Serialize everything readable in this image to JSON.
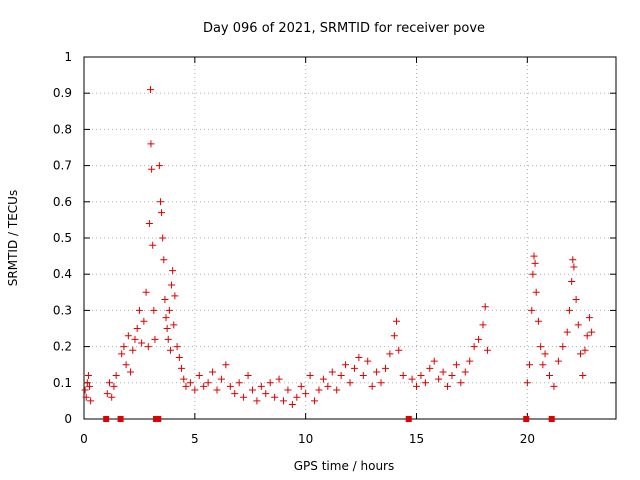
{
  "chart_data": {
    "type": "scatter",
    "title": "Day 096 of 2021, SRMTID for receiver pove",
    "xlabel": "GPS time / hours",
    "ylabel": "SRMTID / TECUs",
    "xlim": [
      0,
      24
    ],
    "ylim": [
      0,
      1
    ],
    "grid": true,
    "marker": "plus",
    "color": "#e00000",
    "x_ticks": [
      "0",
      "5",
      "10",
      "15",
      "20"
    ],
    "x_tick_values": [
      0,
      5,
      10,
      15,
      20
    ],
    "y_ticks": [
      "0",
      "0.1",
      "0.2",
      "0.3",
      "0.4",
      "0.5",
      "0.6",
      "0.7",
      "0.8",
      "0.9",
      "1"
    ],
    "y_tick_values": [
      0,
      0.1,
      0.2,
      0.3,
      0.4,
      0.5,
      0.6,
      0.7,
      0.8,
      0.9,
      1.0
    ],
    "data_gaps_hours": [
      1.0,
      1.65,
      3.25,
      3.35,
      14.65,
      19.95,
      21.1
    ],
    "series": [
      {
        "name": "SRMTID",
        "points": [
          [
            0.05,
            0.08
          ],
          [
            0.1,
            0.06
          ],
          [
            0.15,
            0.1
          ],
          [
            0.2,
            0.12
          ],
          [
            0.25,
            0.09
          ],
          [
            0.3,
            0.05
          ],
          [
            1.05,
            0.07
          ],
          [
            1.15,
            0.1
          ],
          [
            1.25,
            0.06
          ],
          [
            1.35,
            0.09
          ],
          [
            1.45,
            0.12
          ],
          [
            1.7,
            0.18
          ],
          [
            1.8,
            0.2
          ],
          [
            1.9,
            0.15
          ],
          [
            2.0,
            0.23
          ],
          [
            2.1,
            0.13
          ],
          [
            2.2,
            0.19
          ],
          [
            2.3,
            0.22
          ],
          [
            2.4,
            0.25
          ],
          [
            2.5,
            0.3
          ],
          [
            2.6,
            0.21
          ],
          [
            2.7,
            0.27
          ],
          [
            2.8,
            0.35
          ],
          [
            2.9,
            0.2
          ],
          [
            2.95,
            0.54
          ],
          [
            3.0,
            0.91
          ],
          [
            3.02,
            0.76
          ],
          [
            3.05,
            0.69
          ],
          [
            3.1,
            0.48
          ],
          [
            3.15,
            0.3
          ],
          [
            3.2,
            0.22
          ],
          [
            3.4,
            0.7
          ],
          [
            3.45,
            0.6
          ],
          [
            3.5,
            0.57
          ],
          [
            3.55,
            0.5
          ],
          [
            3.6,
            0.44
          ],
          [
            3.65,
            0.33
          ],
          [
            3.7,
            0.28
          ],
          [
            3.75,
            0.25
          ],
          [
            3.8,
            0.22
          ],
          [
            3.85,
            0.3
          ],
          [
            3.9,
            0.19
          ],
          [
            3.95,
            0.37
          ],
          [
            4.0,
            0.41
          ],
          [
            4.05,
            0.26
          ],
          [
            4.1,
            0.34
          ],
          [
            4.2,
            0.2
          ],
          [
            4.3,
            0.17
          ],
          [
            4.4,
            0.14
          ],
          [
            4.5,
            0.11
          ],
          [
            4.6,
            0.09
          ],
          [
            4.8,
            0.1
          ],
          [
            5.0,
            0.08
          ],
          [
            5.2,
            0.12
          ],
          [
            5.4,
            0.09
          ],
          [
            5.6,
            0.1
          ],
          [
            5.8,
            0.13
          ],
          [
            6.0,
            0.08
          ],
          [
            6.2,
            0.11
          ],
          [
            6.4,
            0.15
          ],
          [
            6.6,
            0.09
          ],
          [
            6.8,
            0.07
          ],
          [
            7.0,
            0.1
          ],
          [
            7.2,
            0.06
          ],
          [
            7.4,
            0.12
          ],
          [
            7.6,
            0.08
          ],
          [
            7.8,
            0.05
          ],
          [
            8.0,
            0.09
          ],
          [
            8.2,
            0.07
          ],
          [
            8.4,
            0.1
          ],
          [
            8.6,
            0.06
          ],
          [
            8.8,
            0.11
          ],
          [
            9.0,
            0.05
          ],
          [
            9.2,
            0.08
          ],
          [
            9.4,
            0.04
          ],
          [
            9.6,
            0.06
          ],
          [
            9.8,
            0.09
          ],
          [
            10.0,
            0.07
          ],
          [
            10.2,
            0.12
          ],
          [
            10.4,
            0.05
          ],
          [
            10.6,
            0.08
          ],
          [
            10.8,
            0.11
          ],
          [
            11.0,
            0.09
          ],
          [
            11.2,
            0.13
          ],
          [
            11.4,
            0.08
          ],
          [
            11.6,
            0.12
          ],
          [
            11.8,
            0.15
          ],
          [
            12.0,
            0.1
          ],
          [
            12.2,
            0.14
          ],
          [
            12.4,
            0.17
          ],
          [
            12.6,
            0.12
          ],
          [
            12.8,
            0.16
          ],
          [
            13.0,
            0.09
          ],
          [
            13.2,
            0.13
          ],
          [
            13.4,
            0.1
          ],
          [
            13.6,
            0.14
          ],
          [
            13.8,
            0.18
          ],
          [
            14.0,
            0.23
          ],
          [
            14.1,
            0.27
          ],
          [
            14.2,
            0.19
          ],
          [
            14.4,
            0.12
          ],
          [
            14.8,
            0.11
          ],
          [
            15.0,
            0.09
          ],
          [
            15.2,
            0.12
          ],
          [
            15.4,
            0.1
          ],
          [
            15.6,
            0.14
          ],
          [
            15.8,
            0.16
          ],
          [
            16.0,
            0.11
          ],
          [
            16.2,
            0.13
          ],
          [
            16.4,
            0.09
          ],
          [
            16.6,
            0.12
          ],
          [
            16.8,
            0.15
          ],
          [
            17.0,
            0.1
          ],
          [
            17.2,
            0.13
          ],
          [
            17.4,
            0.16
          ],
          [
            17.6,
            0.2
          ],
          [
            17.8,
            0.22
          ],
          [
            18.0,
            0.26
          ],
          [
            18.1,
            0.31
          ],
          [
            18.2,
            0.19
          ],
          [
            20.0,
            0.1
          ],
          [
            20.1,
            0.15
          ],
          [
            20.2,
            0.3
          ],
          [
            20.25,
            0.4
          ],
          [
            20.3,
            0.45
          ],
          [
            20.35,
            0.43
          ],
          [
            20.4,
            0.35
          ],
          [
            20.5,
            0.27
          ],
          [
            20.6,
            0.2
          ],
          [
            20.7,
            0.15
          ],
          [
            20.8,
            0.18
          ],
          [
            21.0,
            0.12
          ],
          [
            21.2,
            0.09
          ],
          [
            21.4,
            0.16
          ],
          [
            21.6,
            0.2
          ],
          [
            21.8,
            0.24
          ],
          [
            21.9,
            0.3
          ],
          [
            22.0,
            0.38
          ],
          [
            22.05,
            0.44
          ],
          [
            22.1,
            0.42
          ],
          [
            22.2,
            0.33
          ],
          [
            22.3,
            0.26
          ],
          [
            22.4,
            0.18
          ],
          [
            22.5,
            0.12
          ],
          [
            22.6,
            0.19
          ],
          [
            22.7,
            0.23
          ],
          [
            22.8,
            0.28
          ],
          [
            22.9,
            0.24
          ]
        ]
      }
    ]
  }
}
